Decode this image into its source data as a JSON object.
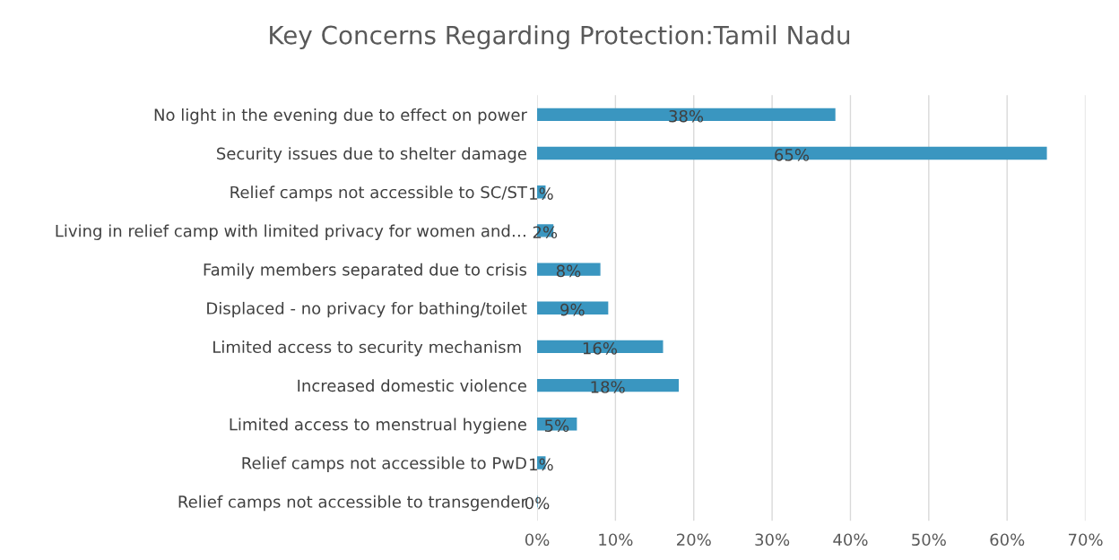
{
  "chart_data": {
    "type": "bar",
    "orientation": "horizontal",
    "title": "Key Concerns Regarding Protection:Tamil Nadu",
    "categories": [
      "No light in the evening due to effect on power",
      "Security issues due to shelter damage",
      "Relief camps not accessible to SC/ST",
      "Living in relief camp with limited privacy for women and…",
      "Family members separated due to crisis",
      "Displaced - no privacy for bathing/toilet",
      "Limited access to security mechanism ",
      "Increased domestic violence",
      "Limited access to menstrual hygiene",
      "Relief camps not accessible to PwD",
      "Relief camps not accessible to transgender"
    ],
    "values": [
      38,
      65,
      1,
      2,
      8,
      9,
      16,
      18,
      5,
      1,
      0
    ],
    "value_labels": [
      "38%",
      "65%",
      "1%",
      "2%",
      "8%",
      "9%",
      "16%",
      "18%",
      "5%",
      "1%",
      "0%"
    ],
    "color": "#3a96c0",
    "xlim": [
      0,
      70
    ],
    "xticks": [
      {
        "value": 0,
        "label": "0%"
      },
      {
        "value": 10,
        "label": "10%"
      },
      {
        "value": 20,
        "label": "20%"
      },
      {
        "value": 30,
        "label": "30%"
      },
      {
        "value": 40,
        "label": "40%"
      },
      {
        "value": 50,
        "label": "50%"
      },
      {
        "value": 60,
        "label": "60%"
      },
      {
        "value": 70,
        "label": "70%"
      }
    ],
    "grid": "x"
  }
}
